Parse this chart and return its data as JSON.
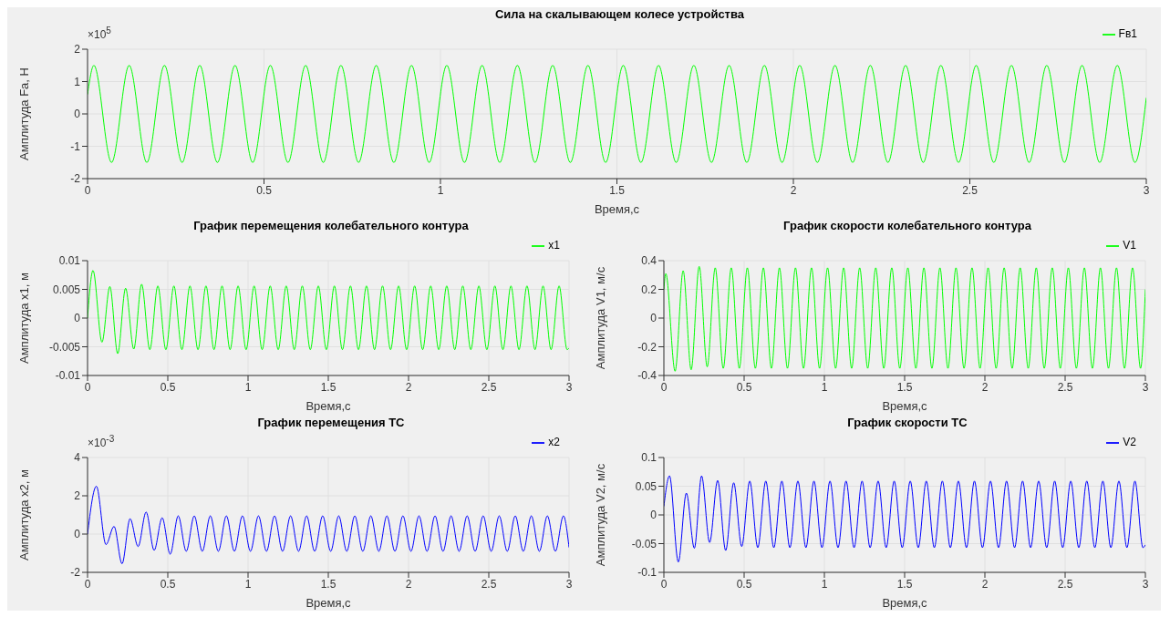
{
  "chart_data": [
    {
      "type": "line",
      "title": "Сила на скалывающем колесе устройства",
      "xlabel": "Время,с",
      "ylabel": "Амплитуда Fa, Н",
      "annotations": [
        "×10$^{5}$"
      ],
      "legend": "top right",
      "grid": true,
      "xlim": [
        0,
        3
      ],
      "xticks": [
        0,
        0.5,
        1,
        1.5,
        2,
        2.5,
        3
      ],
      "ylim": [
        -2,
        2
      ],
      "yticks": [
        -2,
        -1,
        0,
        1,
        2
      ],
      "series": [
        {
          "name": "Fв1",
          "color": "#00ff00",
          "x": [
            0,
            0.018,
            0.068,
            0.118,
            0.168,
            0.218,
            0.268,
            0.318,
            0.368,
            0.418,
            0.468,
            0.518,
            0.568,
            0.618,
            0.668,
            0.718,
            0.768,
            0.818,
            0.868,
            0.918,
            0.968,
            1.018,
            1.068,
            1.118,
            1.168,
            1.218,
            1.268,
            1.318,
            1.368,
            1.418,
            1.468,
            1.518,
            1.568,
            1.618,
            1.668,
            1.718,
            1.768,
            1.818,
            1.868,
            1.918,
            1.968,
            2.018,
            2.068,
            2.118,
            2.168,
            2.218,
            2.268,
            2.318,
            2.368,
            2.418,
            2.468,
            2.518,
            2.568,
            2.618,
            2.668,
            2.718,
            2.768,
            2.818,
            2.868,
            2.918,
            2.968,
            3
          ],
          "values": [
            0.6,
            1.5,
            -1.5,
            1.5,
            -1.5,
            1.5,
            -1.5,
            1.5,
            -1.5,
            1.5,
            -1.5,
            1.5,
            -1.5,
            1.5,
            -1.5,
            1.5,
            -1.5,
            1.5,
            -1.5,
            1.5,
            -1.5,
            1.5,
            -1.5,
            1.5,
            -1.5,
            1.5,
            -1.5,
            1.5,
            -1.5,
            1.5,
            -1.5,
            1.5,
            -1.5,
            1.5,
            -1.5,
            1.5,
            -1.5,
            1.5,
            -1.5,
            1.5,
            -1.5,
            1.5,
            -1.5,
            1.5,
            -1.5,
            1.5,
            -1.5,
            1.5,
            -1.5,
            1.5,
            -1.5,
            1.5,
            -1.5,
            1.5,
            -1.5,
            1.5,
            -1.5,
            1.5,
            -1.5,
            1.5,
            -1.5,
            0.5
          ]
        }
      ]
    },
    {
      "type": "line",
      "title": "График перемещения колебательного контура",
      "xlabel": "Время,с",
      "ylabel": "Амплитуда x1, м",
      "legend": "top right",
      "grid": true,
      "xlim": [
        0,
        3
      ],
      "xticks": [
        0,
        0.5,
        1,
        1.5,
        2,
        2.5,
        3
      ],
      "ylim": [
        -0.01,
        0.01
      ],
      "yticks": [
        -0.01,
        -0.005,
        0,
        0.005,
        0.01
      ],
      "series": [
        {
          "name": "x1",
          "color": "#00ff00",
          "x": [
            0,
            0.034,
            0.09,
            0.139,
            0.188,
            0.237,
            0.288,
            0.337,
            0.388,
            0.438,
            0.488,
            0.538,
            0.588,
            0.638,
            0.688,
            0.738,
            0.788,
            0.838,
            0.888,
            0.938,
            0.988,
            1.038,
            1.088,
            1.138,
            1.188,
            1.238,
            1.288,
            1.338,
            1.388,
            1.438,
            1.488,
            1.538,
            1.588,
            1.638,
            1.688,
            1.738,
            1.788,
            1.838,
            1.888,
            1.938,
            1.988,
            2.038,
            2.088,
            2.138,
            2.188,
            2.238,
            2.288,
            2.338,
            2.388,
            2.438,
            2.488,
            2.538,
            2.588,
            2.638,
            2.688,
            2.738,
            2.788,
            2.838,
            2.888,
            2.938,
            2.988,
            3
          ],
          "values": [
            0,
            0.0083,
            -0.0042,
            0.0055,
            -0.0062,
            0.0052,
            -0.0054,
            0.0059,
            -0.0055,
            0.0056,
            -0.0055,
            0.0056,
            -0.0055,
            0.0056,
            -0.0055,
            0.0056,
            -0.0055,
            0.0056,
            -0.0055,
            0.0056,
            -0.0055,
            0.0056,
            -0.0055,
            0.0056,
            -0.0055,
            0.0056,
            -0.0055,
            0.0056,
            -0.0055,
            0.0056,
            -0.0055,
            0.0056,
            -0.0055,
            0.0056,
            -0.0055,
            0.0056,
            -0.0055,
            0.0056,
            -0.0055,
            0.0056,
            -0.0055,
            0.0056,
            -0.0055,
            0.0056,
            -0.0055,
            0.0056,
            -0.0055,
            0.0056,
            -0.0055,
            0.0056,
            -0.0055,
            0.0056,
            -0.0055,
            0.0056,
            -0.0055,
            0.0056,
            -0.0055,
            0.0056,
            -0.0055,
            0.0056,
            -0.0055,
            -0.0052
          ]
        }
      ]
    },
    {
      "type": "line",
      "title": "График скорости колебательного контура",
      "xlabel": "Время,с",
      "ylabel": "Амплитуда V1, м/с",
      "legend": "top right",
      "grid": true,
      "xlim": [
        0,
        3
      ],
      "xticks": [
        0,
        0.5,
        1,
        1.5,
        2,
        2.5,
        3
      ],
      "ylim": [
        -0.4,
        0.4
      ],
      "yticks": [
        -0.4,
        -0.2,
        0,
        0.2,
        0.4
      ],
      "series": [
        {
          "name": "V1",
          "color": "#00ff00",
          "x": [
            0,
            0.012,
            0.07,
            0.12,
            0.17,
            0.22,
            0.27,
            0.32,
            0.37,
            0.42,
            0.47,
            0.52,
            0.57,
            0.62,
            0.67,
            0.72,
            0.77,
            0.82,
            0.87,
            0.92,
            0.97,
            1.02,
            1.07,
            1.12,
            1.17,
            1.22,
            1.27,
            1.32,
            1.37,
            1.42,
            1.47,
            1.52,
            1.57,
            1.62,
            1.67,
            1.72,
            1.77,
            1.82,
            1.87,
            1.92,
            1.97,
            2.02,
            2.07,
            2.12,
            2.17,
            2.22,
            2.27,
            2.32,
            2.37,
            2.42,
            2.47,
            2.52,
            2.57,
            2.62,
            2.67,
            2.72,
            2.77,
            2.82,
            2.87,
            2.92,
            2.97,
            3
          ],
          "values": [
            0.2,
            0.31,
            -0.37,
            0.33,
            -0.36,
            0.36,
            -0.34,
            0.35,
            -0.35,
            0.35,
            -0.35,
            0.35,
            -0.35,
            0.35,
            -0.35,
            0.35,
            -0.35,
            0.35,
            -0.35,
            0.35,
            -0.35,
            0.35,
            -0.35,
            0.35,
            -0.35,
            0.35,
            -0.35,
            0.35,
            -0.35,
            0.35,
            -0.35,
            0.35,
            -0.35,
            0.35,
            -0.35,
            0.35,
            -0.35,
            0.35,
            -0.35,
            0.35,
            -0.35,
            0.35,
            -0.35,
            0.35,
            -0.35,
            0.35,
            -0.35,
            0.35,
            -0.35,
            0.35,
            -0.35,
            0.35,
            -0.35,
            0.35,
            -0.35,
            0.35,
            -0.35,
            0.35,
            -0.35,
            0.35,
            -0.35,
            0.2
          ]
        }
      ]
    },
    {
      "type": "line",
      "title": "График перемещения  ТС",
      "xlabel": "Время,с",
      "ylabel": "Амплитуда x2, м",
      "annotations": [
        "×10$^{-3}$"
      ],
      "legend": "top right",
      "grid": true,
      "xlim": [
        0,
        3
      ],
      "xticks": [
        0,
        0.5,
        1,
        1.5,
        2,
        2.5,
        3
      ],
      "ylim": [
        -2,
        4
      ],
      "yticks": [
        -2,
        0,
        2,
        4
      ],
      "series": [
        {
          "name": "x2",
          "color": "#0000ff",
          "x": [
            0,
            0.055,
            0.115,
            0.165,
            0.215,
            0.265,
            0.315,
            0.365,
            0.415,
            0.465,
            0.515,
            0.565,
            0.615,
            0.665,
            0.715,
            0.765,
            0.815,
            0.865,
            0.915,
            0.965,
            1.015,
            1.065,
            1.115,
            1.165,
            1.215,
            1.265,
            1.315,
            1.365,
            1.415,
            1.465,
            1.515,
            1.565,
            1.615,
            1.665,
            1.715,
            1.765,
            1.815,
            1.865,
            1.915,
            1.965,
            2.015,
            2.065,
            2.115,
            2.165,
            2.215,
            2.265,
            2.315,
            2.365,
            2.415,
            2.465,
            2.515,
            2.565,
            2.615,
            2.665,
            2.715,
            2.765,
            2.815,
            2.865,
            2.915,
            2.965,
            3
          ],
          "values": [
            0,
            2.5,
            -0.55,
            0.4,
            -1.55,
            0.8,
            -0.65,
            1.15,
            -0.85,
            0.85,
            -1.05,
            0.95,
            -0.9,
            0.95,
            -0.9,
            0.95,
            -0.9,
            0.95,
            -0.9,
            0.95,
            -0.9,
            0.95,
            -0.9,
            0.95,
            -0.9,
            0.95,
            -0.9,
            0.95,
            -0.9,
            0.95,
            -0.9,
            0.95,
            -0.9,
            0.95,
            -0.9,
            0.95,
            -0.9,
            0.95,
            -0.9,
            0.95,
            -0.9,
            0.95,
            -0.9,
            0.95,
            -0.9,
            0.95,
            -0.9,
            0.95,
            -0.9,
            0.95,
            -0.9,
            0.95,
            -0.9,
            0.95,
            -0.9,
            0.95,
            -0.9,
            0.95,
            -0.9,
            0.95,
            -0.7
          ]
        }
      ]
    },
    {
      "type": "line",
      "title": "График скорости ТС",
      "xlabel": "Время,с",
      "ylabel": "Амплитуда V2, м/с",
      "legend": "top right",
      "grid": true,
      "xlim": [
        0,
        3
      ],
      "xticks": [
        0,
        0.5,
        1,
        1.5,
        2,
        2.5,
        3
      ],
      "ylim": [
        -0.1,
        0.1
      ],
      "yticks": [
        -0.1,
        -0.05,
        0,
        0.05,
        0.1
      ],
      "series": [
        {
          "name": "V2",
          "color": "#0000ff",
          "x": [
            0,
            0.035,
            0.09,
            0.14,
            0.19,
            0.235,
            0.285,
            0.335,
            0.385,
            0.435,
            0.485,
            0.535,
            0.585,
            0.635,
            0.685,
            0.735,
            0.785,
            0.835,
            0.885,
            0.935,
            0.985,
            1.035,
            1.085,
            1.135,
            1.185,
            1.235,
            1.285,
            1.335,
            1.385,
            1.435,
            1.485,
            1.535,
            1.585,
            1.635,
            1.685,
            1.735,
            1.785,
            1.835,
            1.885,
            1.935,
            1.985,
            2.035,
            2.085,
            2.135,
            2.185,
            2.235,
            2.285,
            2.335,
            2.385,
            2.435,
            2.485,
            2.535,
            2.585,
            2.635,
            2.685,
            2.735,
            2.785,
            2.835,
            2.885,
            2.935,
            2.985,
            3
          ],
          "values": [
            0.015,
            0.068,
            -0.082,
            0.038,
            -0.058,
            0.068,
            -0.048,
            0.06,
            -0.062,
            0.056,
            -0.055,
            0.059,
            -0.057,
            0.059,
            -0.057,
            0.059,
            -0.057,
            0.059,
            -0.057,
            0.059,
            -0.057,
            0.059,
            -0.057,
            0.059,
            -0.057,
            0.059,
            -0.057,
            0.059,
            -0.057,
            0.059,
            -0.057,
            0.059,
            -0.057,
            0.059,
            -0.057,
            0.059,
            -0.057,
            0.059,
            -0.057,
            0.059,
            -0.057,
            0.059,
            -0.057,
            0.059,
            -0.057,
            0.059,
            -0.057,
            0.059,
            -0.057,
            0.059,
            -0.057,
            0.059,
            -0.057,
            0.059,
            -0.057,
            0.059,
            -0.057,
            0.059,
            -0.057,
            0.059,
            -0.057,
            -0.052
          ]
        }
      ]
    }
  ]
}
